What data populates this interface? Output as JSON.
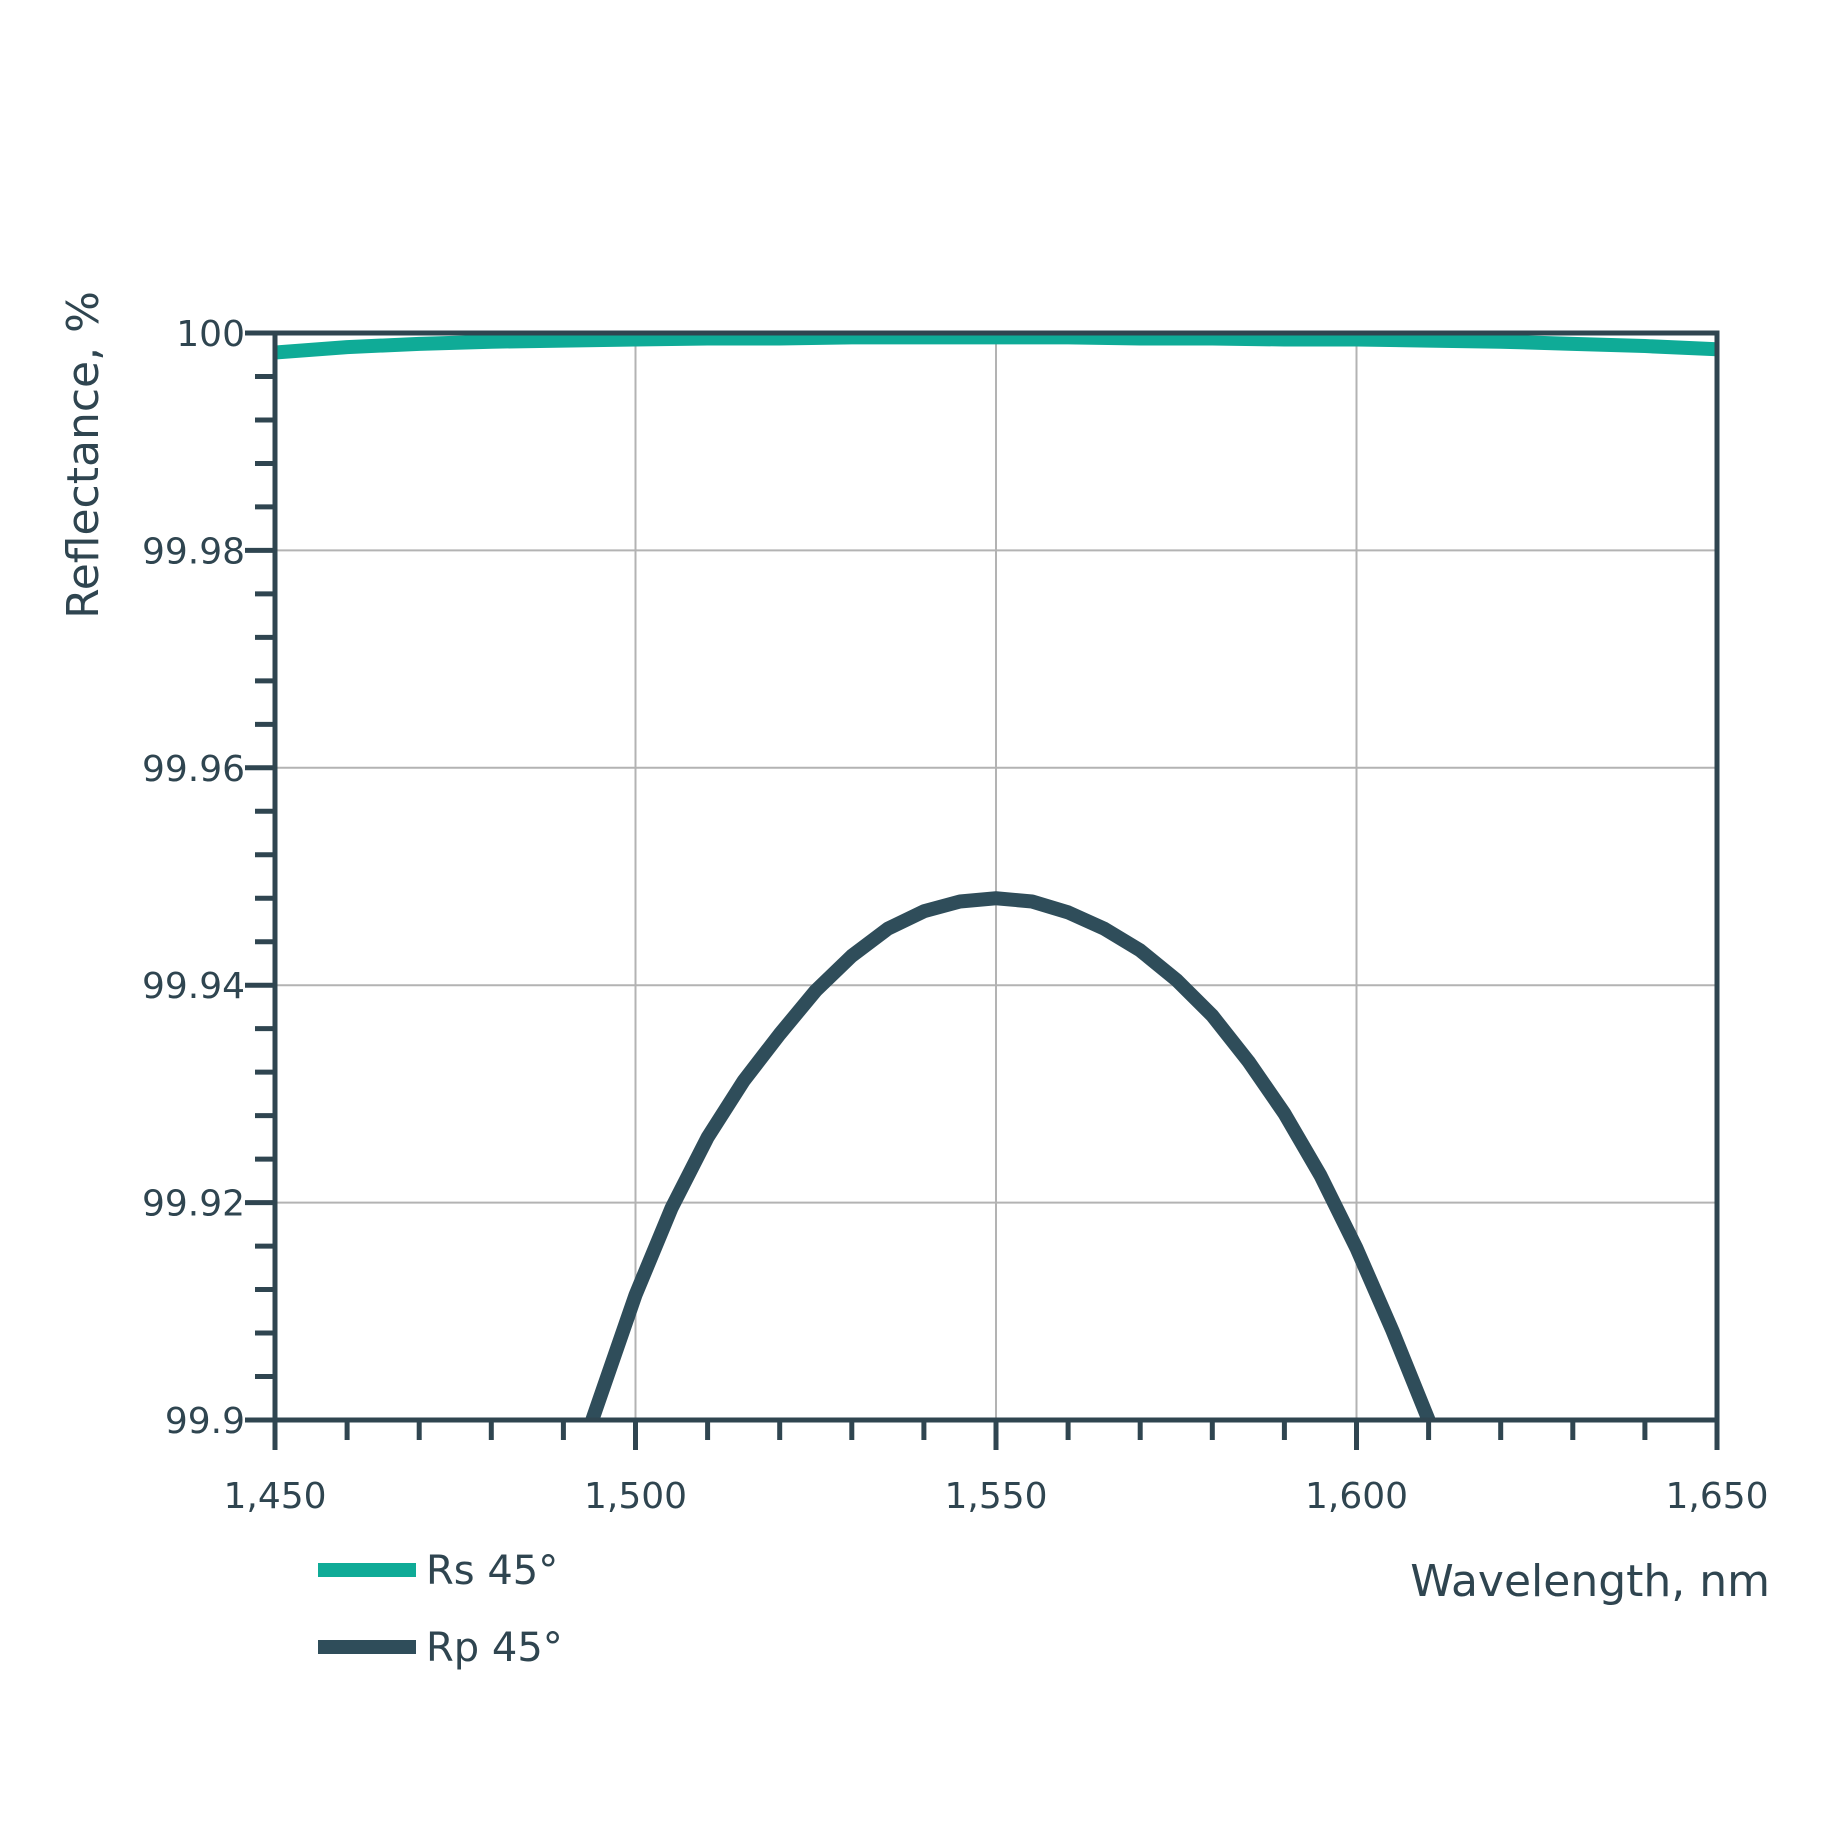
{
  "chart_data": {
    "type": "line",
    "xlabel": "Wavelength, nm",
    "ylabel": "Reflectance, %",
    "xlim": [
      1450,
      1650
    ],
    "ylim": [
      99.9,
      100
    ],
    "x_ticks": [
      1450,
      1500,
      1550,
      1600,
      1650
    ],
    "x_tick_labels": [
      "1,450",
      "1,500",
      "1,550",
      "1,600",
      "1,650"
    ],
    "y_ticks": [
      99.9,
      99.92,
      99.94,
      99.96,
      99.98,
      100
    ],
    "y_tick_labels": [
      "99.9",
      "99.92",
      "99.94",
      "99.96",
      "99.98",
      "100"
    ],
    "x_minor_step": 10,
    "y_minor_step": 0.004,
    "grid": true,
    "legend_position": "bottom-left",
    "series": [
      {
        "name": "Rs 45°",
        "color": "#0fab97",
        "x": [
          1450,
          1460,
          1470,
          1480,
          1490,
          1500,
          1510,
          1520,
          1530,
          1540,
          1550,
          1560,
          1570,
          1580,
          1590,
          1600,
          1610,
          1620,
          1630,
          1640,
          1650
        ],
        "y": [
          99.9982,
          99.9987,
          99.999,
          99.9992,
          99.9993,
          99.9994,
          99.9995,
          99.9995,
          99.9996,
          99.9996,
          99.9996,
          99.9996,
          99.9995,
          99.9995,
          99.9994,
          99.9994,
          99.9993,
          99.9992,
          99.999,
          99.9988,
          99.9985
        ]
      },
      {
        "name": "Rp 45°",
        "color": "#2f4d5a",
        "x": [
          1494,
          1500,
          1505,
          1510,
          1515,
          1520,
          1525,
          1530,
          1535,
          1540,
          1545,
          1550,
          1555,
          1560,
          1565,
          1570,
          1575,
          1580,
          1585,
          1590,
          1595,
          1600,
          1605,
          1610
        ],
        "y": [
          99.9,
          99.9115,
          99.9195,
          99.926,
          99.9312,
          99.9355,
          99.9395,
          99.9427,
          99.9452,
          99.9468,
          99.9477,
          99.948,
          99.9477,
          99.9467,
          99.9452,
          99.9432,
          99.9405,
          99.9372,
          99.933,
          99.9282,
          99.9225,
          99.9158,
          99.9082,
          99.9
        ]
      }
    ]
  }
}
